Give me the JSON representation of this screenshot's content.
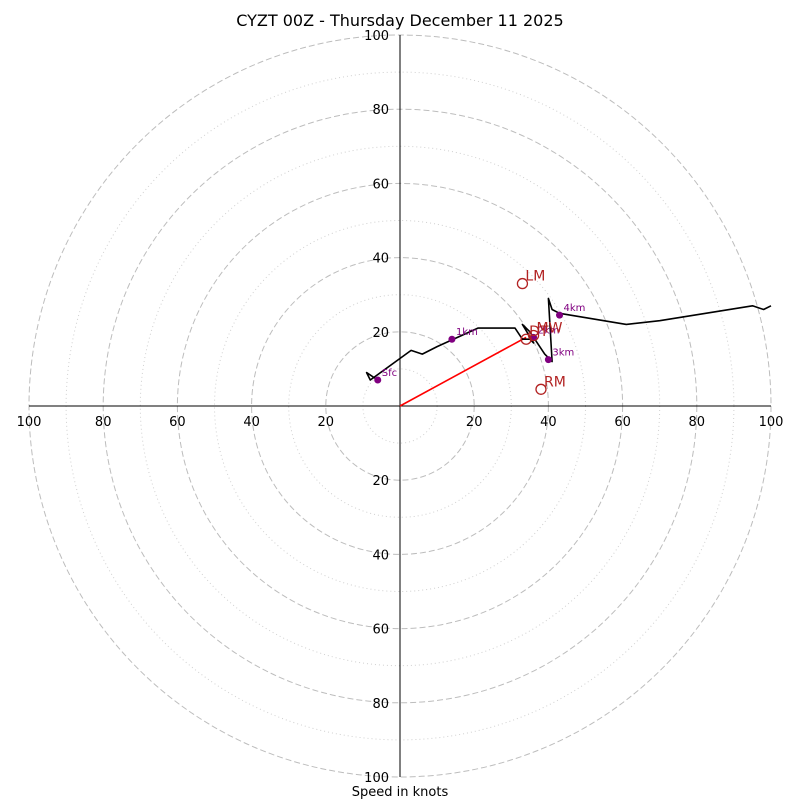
{
  "chart_data": {
    "type": "hodograph",
    "title": "CYZT 00Z - Thursday December 11 2025",
    "xlabel": "Speed in knots",
    "xlim": [
      -100,
      100
    ],
    "ylim": [
      -100,
      100
    ],
    "major_rings": [
      20,
      40,
      60,
      80,
      100
    ],
    "minor_rings": [
      10,
      30,
      50,
      70,
      90
    ],
    "x_tick_labels": [
      "100",
      "80",
      "60",
      "40",
      "20",
      "20",
      "40",
      "60",
      "80",
      "100"
    ],
    "x_tick_values": [
      -100,
      -80,
      -60,
      -40,
      -20,
      20,
      40,
      60,
      80,
      100
    ],
    "y_tick_labels": [
      "100",
      "80",
      "60",
      "40",
      "20",
      "20",
      "40",
      "60",
      "80",
      "100"
    ],
    "y_tick_values": [
      100,
      80,
      60,
      40,
      20,
      -20,
      -40,
      -60,
      -80,
      -100
    ],
    "hodograph_line": {
      "u": [
        -6,
        -9,
        -8,
        3,
        6,
        10,
        21,
        31,
        33,
        35,
        36,
        33,
        35,
        37,
        39,
        41,
        40,
        41,
        43,
        61,
        70,
        95,
        98,
        100
      ],
      "v": [
        7,
        9,
        7,
        15,
        14,
        16,
        21,
        21,
        18,
        18,
        17,
        22,
        20,
        17,
        14,
        12,
        29,
        26,
        25,
        22,
        23,
        27,
        26,
        27
      ]
    },
    "height_markers": [
      {
        "label": "Sfc",
        "u": -6,
        "v": 7
      },
      {
        "label": "1km",
        "u": 14,
        "v": 18
      },
      {
        "label": "2km",
        "u": 36,
        "v": 18.5
      },
      {
        "label": "3km",
        "u": 40,
        "v": 12.5
      },
      {
        "label": "4km",
        "u": 43,
        "v": 24.5
      }
    ],
    "storm_motions": [
      {
        "label": "LM",
        "u": 33,
        "v": 33,
        "color": "#b22222"
      },
      {
        "label": "MW",
        "u": 36,
        "v": 19,
        "color": "#b22222"
      },
      {
        "label": "RM",
        "u": 38,
        "v": 4.5,
        "color": "#b22222"
      },
      {
        "label": "DT",
        "u": 34,
        "v": 18,
        "color": "#b22222"
      }
    ],
    "shear_vector": {
      "u0": 0,
      "v0": 0,
      "u1": 34,
      "v1": 18.5,
      "color": "#ff0000"
    },
    "colors": {
      "hodograph": "#000000",
      "height_markers": "#800080",
      "rings": "#bdbdbd"
    },
    "grid": true
  }
}
